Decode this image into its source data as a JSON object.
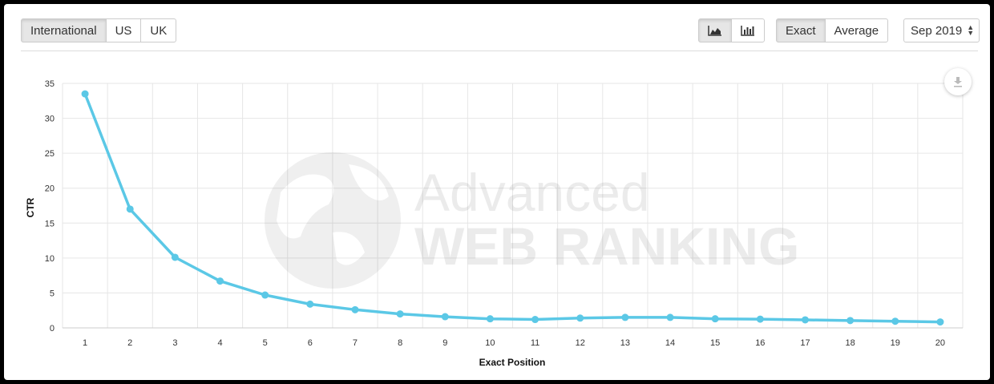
{
  "toolbar": {
    "regions": [
      {
        "label": "International",
        "active": true
      },
      {
        "label": "US",
        "active": false
      },
      {
        "label": "UK",
        "active": false
      }
    ],
    "chart_types": [
      {
        "icon": "area-chart-icon",
        "active": true
      },
      {
        "icon": "bar-chart-icon",
        "active": false
      }
    ],
    "modes": [
      {
        "label": "Exact",
        "active": true
      },
      {
        "label": "Average",
        "active": false
      }
    ],
    "date": "Sep 2019"
  },
  "watermark": {
    "line1": "Advanced",
    "line2": "WEB RANKING"
  },
  "colors": {
    "series": "#5bc8e6",
    "grid": "#e6e6e6",
    "axis": "#cccccc"
  },
  "chart_data": {
    "type": "line",
    "xlabel": "Exact Position",
    "ylabel": "CTR",
    "ylim": [
      0,
      35
    ],
    "yticks": [
      0,
      5,
      10,
      15,
      20,
      25,
      30,
      35
    ],
    "grid": true,
    "x": [
      1,
      2,
      3,
      4,
      5,
      6,
      7,
      8,
      9,
      10,
      11,
      12,
      13,
      14,
      15,
      16,
      17,
      18,
      19,
      20
    ],
    "series": [
      {
        "values": [
          33.5,
          17.0,
          10.1,
          6.7,
          4.7,
          3.4,
          2.6,
          2.0,
          1.6,
          1.3,
          1.2,
          1.4,
          1.5,
          1.5,
          1.3,
          1.25,
          1.15,
          1.05,
          0.95,
          0.85
        ]
      }
    ]
  }
}
